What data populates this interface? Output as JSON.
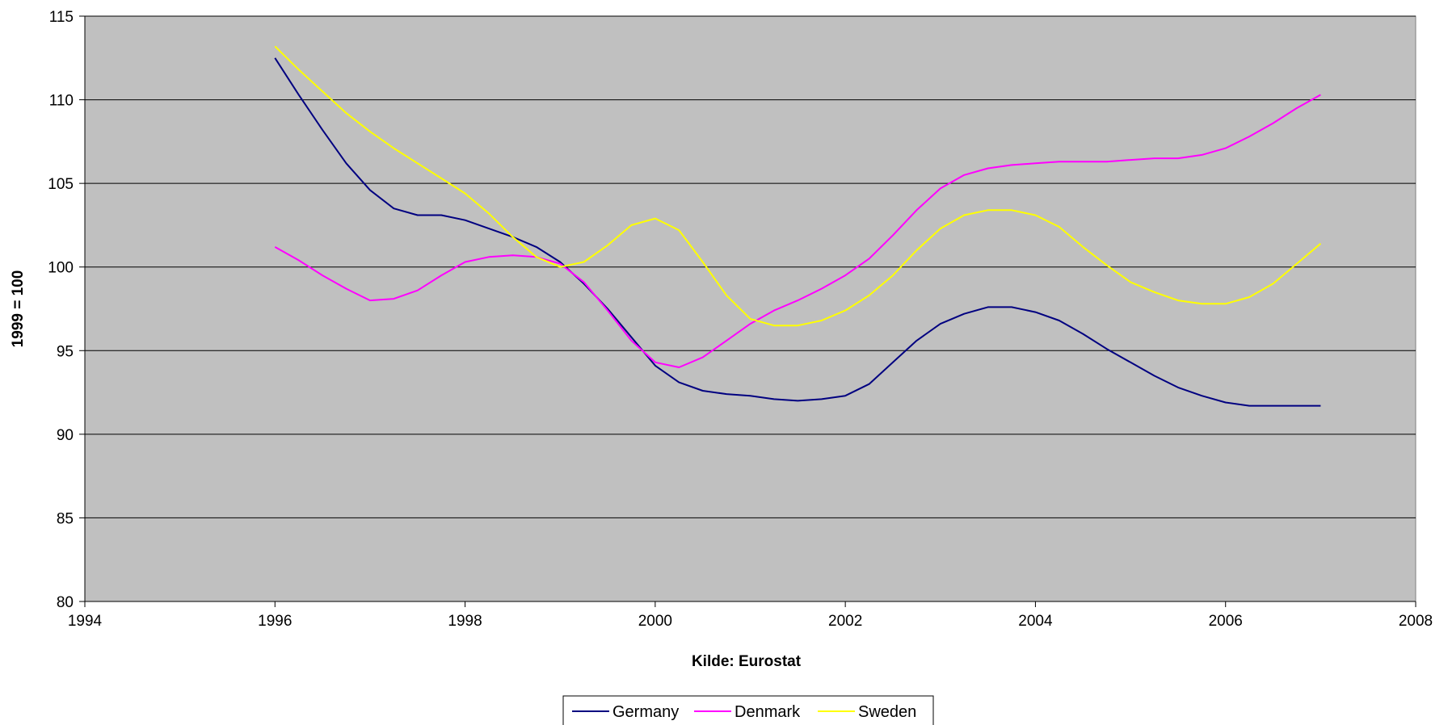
{
  "chart_data": {
    "type": "line",
    "title": "",
    "xlabel": "Kilde: Eurostat",
    "ylabel": "1999 = 100",
    "xlim": [
      1994,
      2008
    ],
    "ylim": [
      80,
      115
    ],
    "x_ticks": [
      "1994",
      "1996",
      "1998",
      "2000",
      "2002",
      "2004",
      "2006",
      "2008"
    ],
    "y_ticks": [
      "80",
      "85",
      "90",
      "95",
      "100",
      "105",
      "110",
      "115"
    ],
    "grid": "horizontal",
    "legend_position": "bottom",
    "series": [
      {
        "name": "Germany",
        "color": "#000080",
        "points": [
          [
            1996,
            112.5
          ],
          [
            1996.25,
            110.3
          ],
          [
            1996.5,
            108.2
          ],
          [
            1996.75,
            106.2
          ],
          [
            1997,
            104.6
          ],
          [
            1997.25,
            103.5
          ],
          [
            1997.5,
            103.1
          ],
          [
            1997.75,
            103.1
          ],
          [
            1998,
            102.8
          ],
          [
            1998.25,
            102.3
          ],
          [
            1998.5,
            101.8
          ],
          [
            1998.75,
            101.2
          ],
          [
            1999,
            100.3
          ],
          [
            1999.25,
            99.0
          ],
          [
            1999.5,
            97.5
          ],
          [
            1999.75,
            95.8
          ],
          [
            2000,
            94.1
          ],
          [
            2000.25,
            93.1
          ],
          [
            2000.5,
            92.6
          ],
          [
            2000.75,
            92.4
          ],
          [
            2001,
            92.3
          ],
          [
            2001.25,
            92.1
          ],
          [
            2001.5,
            92.0
          ],
          [
            2001.75,
            92.1
          ],
          [
            2002,
            92.3
          ],
          [
            2002.25,
            93.0
          ],
          [
            2002.5,
            94.3
          ],
          [
            2002.75,
            95.6
          ],
          [
            2003,
            96.6
          ],
          [
            2003.25,
            97.2
          ],
          [
            2003.5,
            97.6
          ],
          [
            2003.75,
            97.6
          ],
          [
            2004,
            97.3
          ],
          [
            2004.25,
            96.8
          ],
          [
            2004.5,
            96.0
          ],
          [
            2004.75,
            95.1
          ],
          [
            2005,
            94.3
          ],
          [
            2005.25,
            93.5
          ],
          [
            2005.5,
            92.8
          ],
          [
            2005.75,
            92.3
          ],
          [
            2006,
            91.9
          ],
          [
            2006.25,
            91.7
          ],
          [
            2006.5,
            91.7
          ],
          [
            2006.75,
            91.7
          ],
          [
            2007,
            91.7
          ]
        ]
      },
      {
        "name": "Denmark",
        "color": "#ff00ff",
        "points": [
          [
            1996,
            101.2
          ],
          [
            1996.25,
            100.4
          ],
          [
            1996.5,
            99.5
          ],
          [
            1996.75,
            98.7
          ],
          [
            1997,
            98.0
          ],
          [
            1997.25,
            98.1
          ],
          [
            1997.5,
            98.6
          ],
          [
            1997.75,
            99.5
          ],
          [
            1998,
            100.3
          ],
          [
            1998.25,
            100.6
          ],
          [
            1998.5,
            100.7
          ],
          [
            1998.75,
            100.6
          ],
          [
            1999,
            100.2
          ],
          [
            1999.25,
            99.1
          ],
          [
            1999.5,
            97.4
          ],
          [
            1999.75,
            95.6
          ],
          [
            2000,
            94.3
          ],
          [
            2000.25,
            94.0
          ],
          [
            2000.5,
            94.6
          ],
          [
            2000.75,
            95.6
          ],
          [
            2001,
            96.6
          ],
          [
            2001.25,
            97.4
          ],
          [
            2001.5,
            98.0
          ],
          [
            2001.75,
            98.7
          ],
          [
            2002,
            99.5
          ],
          [
            2002.25,
            100.5
          ],
          [
            2002.5,
            101.9
          ],
          [
            2002.75,
            103.4
          ],
          [
            2003,
            104.7
          ],
          [
            2003.25,
            105.5
          ],
          [
            2003.5,
            105.9
          ],
          [
            2003.75,
            106.1
          ],
          [
            2004,
            106.2
          ],
          [
            2004.25,
            106.3
          ],
          [
            2004.5,
            106.3
          ],
          [
            2004.75,
            106.3
          ],
          [
            2005,
            106.4
          ],
          [
            2005.25,
            106.5
          ],
          [
            2005.5,
            106.5
          ],
          [
            2005.75,
            106.7
          ],
          [
            2006,
            107.1
          ],
          [
            2006.25,
            107.8
          ],
          [
            2006.5,
            108.6
          ],
          [
            2006.75,
            109.5
          ],
          [
            2007,
            110.3
          ]
        ]
      },
      {
        "name": "Sweden",
        "color": "#ffff00",
        "points": [
          [
            1996,
            113.2
          ],
          [
            1996.25,
            111.8
          ],
          [
            1996.5,
            110.5
          ],
          [
            1996.75,
            109.2
          ],
          [
            1997,
            108.1
          ],
          [
            1997.25,
            107.1
          ],
          [
            1997.5,
            106.2
          ],
          [
            1997.75,
            105.3
          ],
          [
            1998,
            104.4
          ],
          [
            1998.25,
            103.2
          ],
          [
            1998.5,
            101.8
          ],
          [
            1998.75,
            100.6
          ],
          [
            1999,
            100.0
          ],
          [
            1999.25,
            100.3
          ],
          [
            1999.5,
            101.3
          ],
          [
            1999.75,
            102.5
          ],
          [
            2000,
            102.9
          ],
          [
            2000.25,
            102.2
          ],
          [
            2000.5,
            100.3
          ],
          [
            2000.75,
            98.3
          ],
          [
            2001,
            96.9
          ],
          [
            2001.25,
            96.5
          ],
          [
            2001.5,
            96.5
          ],
          [
            2001.75,
            96.8
          ],
          [
            2002,
            97.4
          ],
          [
            2002.25,
            98.3
          ],
          [
            2002.5,
            99.5
          ],
          [
            2002.75,
            101.0
          ],
          [
            2003,
            102.3
          ],
          [
            2003.25,
            103.1
          ],
          [
            2003.5,
            103.4
          ],
          [
            2003.75,
            103.4
          ],
          [
            2004,
            103.1
          ],
          [
            2004.25,
            102.4
          ],
          [
            2004.5,
            101.2
          ],
          [
            2004.75,
            100.1
          ],
          [
            2005,
            99.1
          ],
          [
            2005.25,
            98.5
          ],
          [
            2005.5,
            98.0
          ],
          [
            2005.75,
            97.8
          ],
          [
            2006,
            97.8
          ],
          [
            2006.25,
            98.2
          ],
          [
            2006.5,
            99.0
          ],
          [
            2006.75,
            100.2
          ],
          [
            2007,
            101.4
          ]
        ]
      }
    ]
  },
  "colors": {
    "plot_background": "#c0c0c0",
    "gridline": "#000000"
  }
}
